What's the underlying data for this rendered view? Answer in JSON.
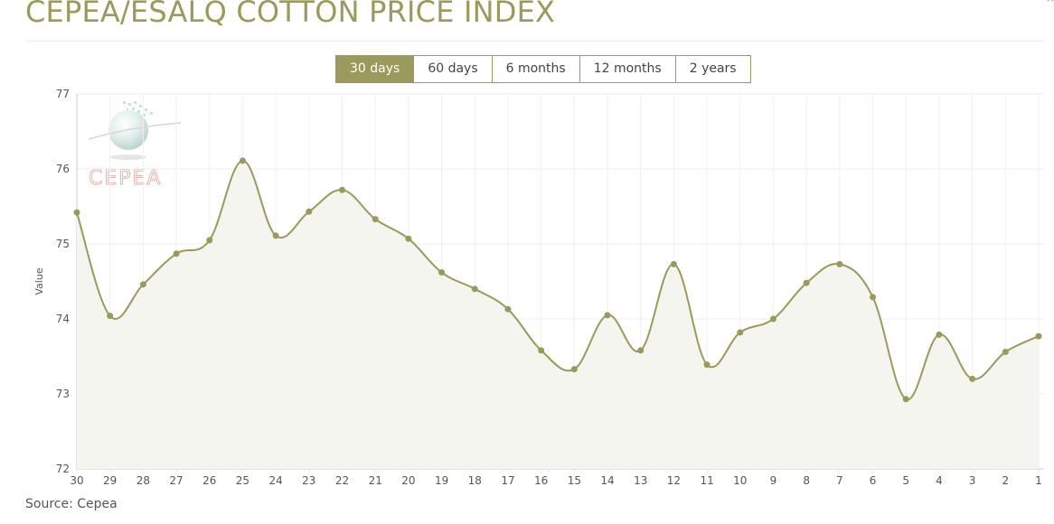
{
  "header": {
    "title": "CEPEA/ESALQ COTTON PRICE INDEX",
    "close_symbol": "×"
  },
  "range_tabs": [
    {
      "label": "30 days",
      "active": true
    },
    {
      "label": "60 days",
      "active": false
    },
    {
      "label": "6 months",
      "active": false
    },
    {
      "label": "12 months",
      "active": false
    },
    {
      "label": "2 years",
      "active": false
    }
  ],
  "watermark": {
    "text": "CEPEA"
  },
  "footer": {
    "source": "Source: Cepea"
  },
  "colors": {
    "accent": "#9a9a5a",
    "line": "#9a9a5a",
    "area_fill": "#f5f5ef",
    "grid": "#ececec"
  },
  "chart_data": {
    "type": "area",
    "title": "CEPEA/ESALQ COTTON PRICE INDEX",
    "xlabel": "",
    "ylabel": "Value",
    "ylim": [
      72,
      77
    ],
    "yticks": [
      72,
      73,
      74,
      75,
      76,
      77
    ],
    "grid": true,
    "categories": [
      "30",
      "29",
      "28",
      "27",
      "26",
      "25",
      "24",
      "23",
      "22",
      "21",
      "20",
      "19",
      "18",
      "17",
      "16",
      "15",
      "14",
      "13",
      "12",
      "11",
      "10",
      "9",
      "8",
      "7",
      "6",
      "5",
      "4",
      "3",
      "2",
      "1"
    ],
    "series": [
      {
        "values": [
          75.42,
          74.04,
          74.46,
          74.87,
          75.05,
          76.11,
          75.11,
          75.43,
          75.72,
          75.33,
          75.07,
          74.62,
          74.4,
          74.13,
          73.58,
          73.33,
          74.05,
          73.58,
          74.73,
          73.39,
          73.82,
          74.0,
          74.48,
          74.73,
          74.29,
          72.93,
          73.79,
          73.2,
          73.56,
          73.77
        ]
      }
    ]
  }
}
